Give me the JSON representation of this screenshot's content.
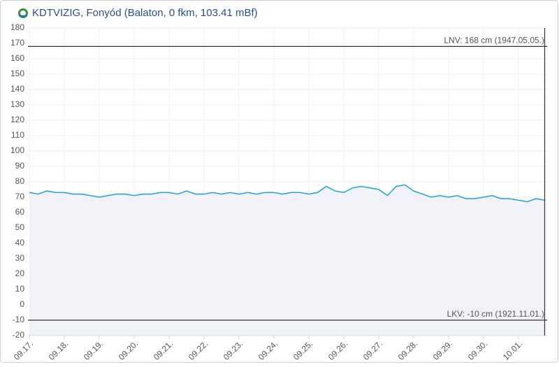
{
  "chart_data": {
    "type": "line",
    "title": "KDTVIZIG, Fonyód (Balaton, 0 fkm, 103.41 mBf)",
    "x": [
      0,
      0.25,
      0.5,
      0.75,
      1,
      1.25,
      1.5,
      1.75,
      2,
      2.25,
      2.5,
      2.75,
      3,
      3.25,
      3.5,
      3.75,
      4,
      4.25,
      4.5,
      4.75,
      5,
      5.25,
      5.5,
      5.75,
      6,
      6.25,
      6.5,
      6.75,
      7,
      7.25,
      7.5,
      7.75,
      8,
      8.25,
      8.5,
      8.75,
      9,
      9.25,
      9.5,
      9.75,
      10,
      10.25,
      10.5,
      10.75,
      11,
      11.25,
      11.5,
      11.75,
      12,
      12.25,
      12.5,
      12.75,
      13,
      13.25,
      13.5,
      13.75,
      14,
      14.25,
      14.5,
      14.75
    ],
    "values": [
      73,
      72,
      74,
      73,
      73,
      72,
      72,
      71,
      70,
      71,
      72,
      72,
      71,
      72,
      72,
      73,
      73,
      72,
      74,
      72,
      72,
      73,
      72,
      73,
      72,
      73,
      72,
      73,
      73,
      72,
      73,
      73,
      72,
      73,
      77,
      74,
      73,
      76,
      77,
      76,
      75,
      71,
      77,
      78,
      74,
      72,
      70,
      71,
      70,
      71,
      69,
      69,
      70,
      71,
      69,
      69,
      68,
      67,
      69,
      68
    ],
    "color": "#1fa2cf",
    "area_color": "#f1f2f8",
    "xlim": [
      -0.04,
      14.82
    ],
    "xticks": [
      {
        "value": 0,
        "label": "09.17."
      },
      {
        "value": 1,
        "label": "09.18."
      },
      {
        "value": 2,
        "label": "09.19."
      },
      {
        "value": 3,
        "label": "09.20."
      },
      {
        "value": 4,
        "label": "09.21."
      },
      {
        "value": 5,
        "label": "09.22."
      },
      {
        "value": 6,
        "label": "09.23."
      },
      {
        "value": 7,
        "label": "09.24."
      },
      {
        "value": 8,
        "label": "09.25."
      },
      {
        "value": 9,
        "label": "09.26."
      },
      {
        "value": 10,
        "label": "09.27."
      },
      {
        "value": 11,
        "label": "09.28."
      },
      {
        "value": 12,
        "label": "09.29."
      },
      {
        "value": 13,
        "label": "09.30."
      },
      {
        "value": 14,
        "label": "10.01."
      }
    ],
    "ylim": [
      -20,
      180
    ],
    "yticks": [
      -20,
      -10,
      0,
      10,
      20,
      30,
      40,
      50,
      60,
      70,
      80,
      90,
      100,
      110,
      120,
      130,
      140,
      150,
      160,
      170,
      180
    ],
    "grid": true,
    "reference_lines": [
      {
        "label": "LNV: 168 cm (1947.05.05.)",
        "value": 168
      },
      {
        "label": "LKV: -10 cm (1921.11.01.)",
        "value": -10
      }
    ]
  }
}
